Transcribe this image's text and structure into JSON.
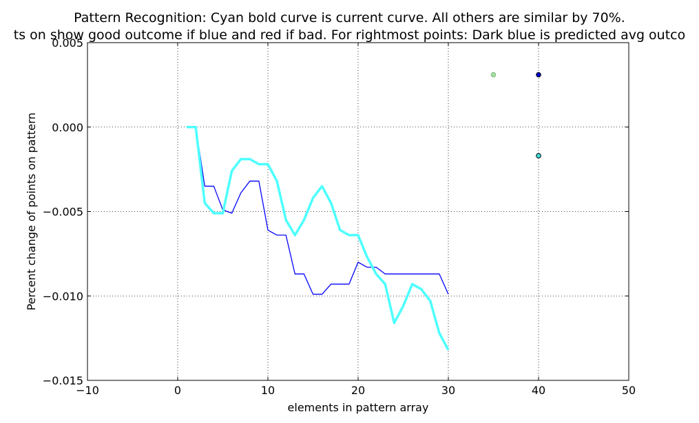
{
  "chart_data": {
    "type": "line",
    "title": "Pattern Recognition: Cyan bold curve is current curve. All others are similar by 70%.",
    "subtitle": "ts on show good outcome if blue and red if bad. For rightmost points: Dark blue is predicted avg outco",
    "xlabel": "elements in pattern array",
    "ylabel": "Percent change of points on pattern",
    "xlim": [
      -10,
      50
    ],
    "ylim": [
      -0.015,
      0.005
    ],
    "x_ticks": [
      "−10",
      "0",
      "10",
      "20",
      "30",
      "40",
      "50"
    ],
    "y_ticks": [
      "−0.015",
      "−0.010",
      "−0.005",
      "0.000",
      "0.005"
    ],
    "grid": true,
    "colors": {
      "current": "#4dffff",
      "similar": "#0000ff",
      "green_point": "#90d890",
      "avg_point": "#0000cc",
      "actual_point": "#40e0e0"
    },
    "x": [
      1,
      2,
      3,
      4,
      5,
      6,
      7,
      8,
      9,
      10,
      11,
      12,
      13,
      14,
      15,
      16,
      17,
      18,
      19,
      20,
      21,
      22,
      23,
      24,
      25,
      26,
      27,
      28,
      29,
      30
    ],
    "series": [
      {
        "key": "similar",
        "values": [
          0.0,
          0.0,
          -0.0035,
          -0.0035,
          -0.0049,
          -0.0051,
          -0.0039,
          -0.0032,
          -0.0032,
          -0.0061,
          -0.0064,
          -0.0064,
          -0.0087,
          -0.0087,
          -0.0099,
          -0.0099,
          -0.0093,
          -0.0093,
          -0.0093,
          -0.008,
          -0.0083,
          -0.0083,
          -0.0087,
          -0.0087,
          -0.0087,
          -0.0087,
          -0.0087,
          -0.0087,
          -0.0087,
          -0.0099
        ]
      },
      {
        "key": "current",
        "values": [
          0.0,
          0.0,
          -0.0045,
          -0.0051,
          -0.0051,
          -0.0026,
          -0.0019,
          -0.0019,
          -0.0022,
          -0.0022,
          -0.0032,
          -0.0055,
          -0.0064,
          -0.0055,
          -0.0042,
          -0.0035,
          -0.0045,
          -0.0061,
          -0.0064,
          -0.0064,
          -0.0077,
          -0.0087,
          -0.0093,
          -0.0116,
          -0.0106,
          -0.0093,
          -0.0096,
          -0.0103,
          -0.0122,
          -0.0132
        ]
      }
    ],
    "points": [
      {
        "key": "similar-outcome",
        "x": 35,
        "y": 0.0031
      },
      {
        "key": "predicted-avg-outcome",
        "x": 40,
        "y": 0.0031
      },
      {
        "key": "current-outcome",
        "x": 40,
        "y": -0.0017
      }
    ]
  }
}
